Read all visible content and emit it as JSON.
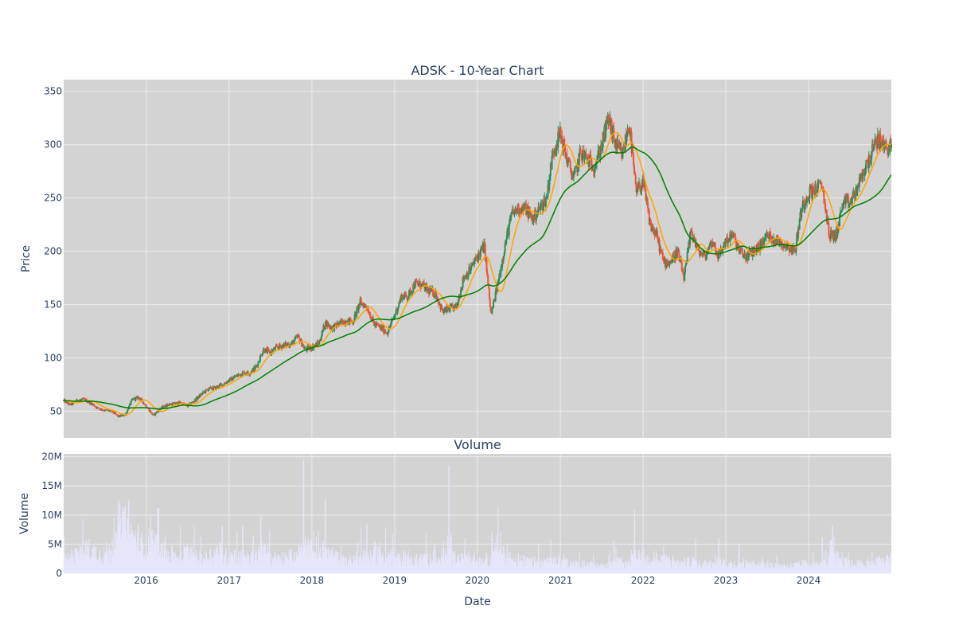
{
  "chart_data": [
    {
      "type": "candlestick",
      "title": "ADSK - 10-Year Chart",
      "ylabel": "Price",
      "ylim": [
        25,
        361
      ],
      "xlim": [
        "2015-01-02",
        "2024-12-31"
      ],
      "yticks": [
        50,
        100,
        150,
        200,
        250,
        300,
        350
      ],
      "series": [
        {
          "kind": "ohlc",
          "color_up": "#2e8b57",
          "color_down": "#ef553b",
          "close": [
            [
              "2015-01-02",
              60
            ],
            [
              "2015-02-01",
              56
            ],
            [
              "2015-03-01",
              60
            ],
            [
              "2015-04-01",
              61
            ],
            [
              "2015-05-01",
              58
            ],
            [
              "2015-06-01",
              53
            ],
            [
              "2015-07-01",
              51
            ],
            [
              "2015-08-01",
              50
            ],
            [
              "2015-09-01",
              45
            ],
            [
              "2015-10-01",
              47
            ],
            [
              "2015-11-01",
              61
            ],
            [
              "2015-12-01",
              63
            ],
            [
              "2016-01-01",
              55
            ],
            [
              "2016-02-01",
              46
            ],
            [
              "2016-03-01",
              52
            ],
            [
              "2016-04-01",
              56
            ],
            [
              "2016-05-01",
              57
            ],
            [
              "2016-06-01",
              58
            ],
            [
              "2016-07-01",
              55
            ],
            [
              "2016-08-01",
              60
            ],
            [
              "2016-09-01",
              66
            ],
            [
              "2016-10-01",
              71
            ],
            [
              "2016-11-01",
              72
            ],
            [
              "2016-12-01",
              75
            ],
            [
              "2017-01-01",
              79
            ],
            [
              "2017-02-01",
              83
            ],
            [
              "2017-03-01",
              86
            ],
            [
              "2017-04-01",
              86
            ],
            [
              "2017-05-01",
              92
            ],
            [
              "2017-06-01",
              108
            ],
            [
              "2017-07-01",
              105
            ],
            [
              "2017-08-01",
              110
            ],
            [
              "2017-09-01",
              112
            ],
            [
              "2017-10-01",
              113
            ],
            [
              "2017-11-01",
              120
            ],
            [
              "2017-12-01",
              108
            ],
            [
              "2018-01-01",
              110
            ],
            [
              "2018-02-01",
              114
            ],
            [
              "2018-03-01",
              133
            ],
            [
              "2018-04-01",
              128
            ],
            [
              "2018-05-01",
              132
            ],
            [
              "2018-06-01",
              135
            ],
            [
              "2018-07-01",
              134
            ],
            [
              "2018-08-01",
              152
            ],
            [
              "2018-09-01",
              148
            ],
            [
              "2018-10-01",
              132
            ],
            [
              "2018-11-01",
              128
            ],
            [
              "2018-12-01",
              124
            ],
            [
              "2019-01-01",
              140
            ],
            [
              "2019-02-01",
              158
            ],
            [
              "2019-03-01",
              158
            ],
            [
              "2019-04-01",
              170
            ],
            [
              "2019-05-01",
              168
            ],
            [
              "2019-06-01",
              163
            ],
            [
              "2019-07-01",
              160
            ],
            [
              "2019-08-01",
              143
            ],
            [
              "2019-09-01",
              146
            ],
            [
              "2019-10-01",
              148
            ],
            [
              "2019-11-01",
              175
            ],
            [
              "2019-12-01",
              183
            ],
            [
              "2020-01-01",
              195
            ],
            [
              "2020-02-01",
              205
            ],
            [
              "2020-03-01",
              140
            ],
            [
              "2020-04-01",
              170
            ],
            [
              "2020-05-01",
              205
            ],
            [
              "2020-06-01",
              235
            ],
            [
              "2020-07-01",
              240
            ],
            [
              "2020-08-01",
              240
            ],
            [
              "2020-09-01",
              230
            ],
            [
              "2020-10-01",
              240
            ],
            [
              "2020-11-01",
              250
            ],
            [
              "2020-12-01",
              295
            ],
            [
              "2021-01-01",
              310
            ],
            [
              "2021-02-01",
              285
            ],
            [
              "2021-03-01",
              268
            ],
            [
              "2021-04-01",
              293
            ],
            [
              "2021-05-01",
              286
            ],
            [
              "2021-06-01",
              280
            ],
            [
              "2021-07-01",
              298
            ],
            [
              "2021-08-01",
              325
            ],
            [
              "2021-09-01",
              300
            ],
            [
              "2021-10-01",
              290
            ],
            [
              "2021-11-01",
              320
            ],
            [
              "2021-12-01",
              255
            ],
            [
              "2022-01-01",
              265
            ],
            [
              "2022-02-01",
              225
            ],
            [
              "2022-03-01",
              215
            ],
            [
              "2022-04-01",
              190
            ],
            [
              "2022-05-01",
              190
            ],
            [
              "2022-06-01",
              200
            ],
            [
              "2022-07-01",
              175
            ],
            [
              "2022-08-01",
              220
            ],
            [
              "2022-09-01",
              200
            ],
            [
              "2022-10-01",
              195
            ],
            [
              "2022-11-01",
              210
            ],
            [
              "2022-12-01",
              195
            ],
            [
              "2023-01-01",
              210
            ],
            [
              "2023-02-01",
              215
            ],
            [
              "2023-03-01",
              200
            ],
            [
              "2023-04-01",
              195
            ],
            [
              "2023-05-01",
              200
            ],
            [
              "2023-06-01",
              205
            ],
            [
              "2023-07-01",
              215
            ],
            [
              "2023-08-01",
              212
            ],
            [
              "2023-09-01",
              208
            ],
            [
              "2023-10-01",
              205
            ],
            [
              "2023-11-01",
              200
            ],
            [
              "2023-12-01",
              240
            ],
            [
              "2024-01-01",
              255
            ],
            [
              "2024-02-01",
              258
            ],
            [
              "2024-03-01",
              262
            ],
            [
              "2024-04-01",
              215
            ],
            [
              "2024-05-01",
              215
            ],
            [
              "2024-06-01",
              245
            ],
            [
              "2024-07-01",
              245
            ],
            [
              "2024-08-01",
              258
            ],
            [
              "2024-09-01",
              275
            ],
            [
              "2024-10-01",
              290
            ],
            [
              "2024-11-01",
              305
            ],
            [
              "2024-12-01",
              298
            ]
          ]
        },
        {
          "kind": "line",
          "color": "#ffa500",
          "smoothing_window": 2
        },
        {
          "kind": "line",
          "color": "#008000",
          "smoothing_window": 8
        }
      ]
    },
    {
      "type": "bar",
      "title": "Volume",
      "xlabel": "Date",
      "ylabel": "Volume",
      "ylim": [
        0,
        20.5
      ],
      "yticks": [
        0,
        5,
        10,
        15,
        20
      ],
      "ytick_labels": [
        "0",
        "5M",
        "10M",
        "15M",
        "20M"
      ],
      "xticks": [
        "2016",
        "2017",
        "2018",
        "2019",
        "2020",
        "2021",
        "2022",
        "2023",
        "2024"
      ],
      "bar_color": "#e6e6fa",
      "values_M": [
        2.2,
        2.8,
        3.2,
        3.8,
        3.4,
        3.0,
        3.5,
        5.0,
        7.5,
        6.0,
        5.5,
        4.5,
        5.0,
        4.5,
        3.5,
        3.0,
        2.8,
        3.2,
        3.0,
        2.6,
        2.5,
        3.0,
        3.5,
        2.8,
        3.0,
        2.5,
        2.8,
        2.6,
        4.0,
        3.2,
        2.5,
        2.5,
        2.8,
        2.5,
        3.5,
        4.0,
        2.5,
        3.5,
        3.0,
        2.5,
        2.2,
        2.0,
        2.5,
        3.0,
        2.5,
        3.5,
        3.0,
        2.8,
        2.2,
        2.6,
        2.0,
        2.2,
        2.5,
        2.5,
        2.0,
        3.5,
        2.5,
        2.2,
        2.5,
        2.0,
        2.0,
        2.2,
        4.5,
        3.0,
        2.5,
        2.2,
        2.0,
        1.8,
        1.8,
        1.6,
        2.0,
        2.0,
        1.8,
        1.6,
        1.5,
        1.4,
        1.3,
        1.2,
        1.2,
        2.5,
        1.8,
        1.5,
        2.5,
        2.5,
        2.2,
        2.5,
        2.0,
        2.2,
        2.0,
        1.6,
        1.8,
        2.0,
        1.5,
        1.6,
        2.2,
        1.8,
        1.5,
        1.5,
        1.6,
        1.4,
        1.6,
        1.5,
        1.3,
        1.3,
        1.2,
        1.2,
        1.3,
        1.5,
        1.6,
        1.5,
        1.5,
        4.0,
        2.5,
        1.8,
        1.5,
        1.5,
        1.6,
        1.8,
        2.0,
        2.2
      ],
      "spikes_M": [
        [
          "2015-09-01",
          12.5
        ],
        [
          "2015-10-15",
          12.5
        ],
        [
          "2016-02-25",
          11.2
        ],
        [
          "2016-12-01",
          8.2
        ],
        [
          "2017-03-01",
          8.2
        ],
        [
          "2017-05-20",
          9.8
        ],
        [
          "2017-11-25",
          19.5
        ],
        [
          "2018-03-01",
          12.8
        ],
        [
          "2018-08-31",
          8.5
        ],
        [
          "2019-08-28",
          18.5
        ],
        [
          "2021-08-25",
          5.5
        ],
        [
          "2021-11-24",
          10.8
        ],
        [
          "2022-11-30",
          6.0
        ],
        [
          "2023-02-28",
          5.0
        ],
        [
          "2024-03-01",
          6.2
        ],
        [
          "2024-04-15",
          8.2
        ]
      ]
    }
  ]
}
